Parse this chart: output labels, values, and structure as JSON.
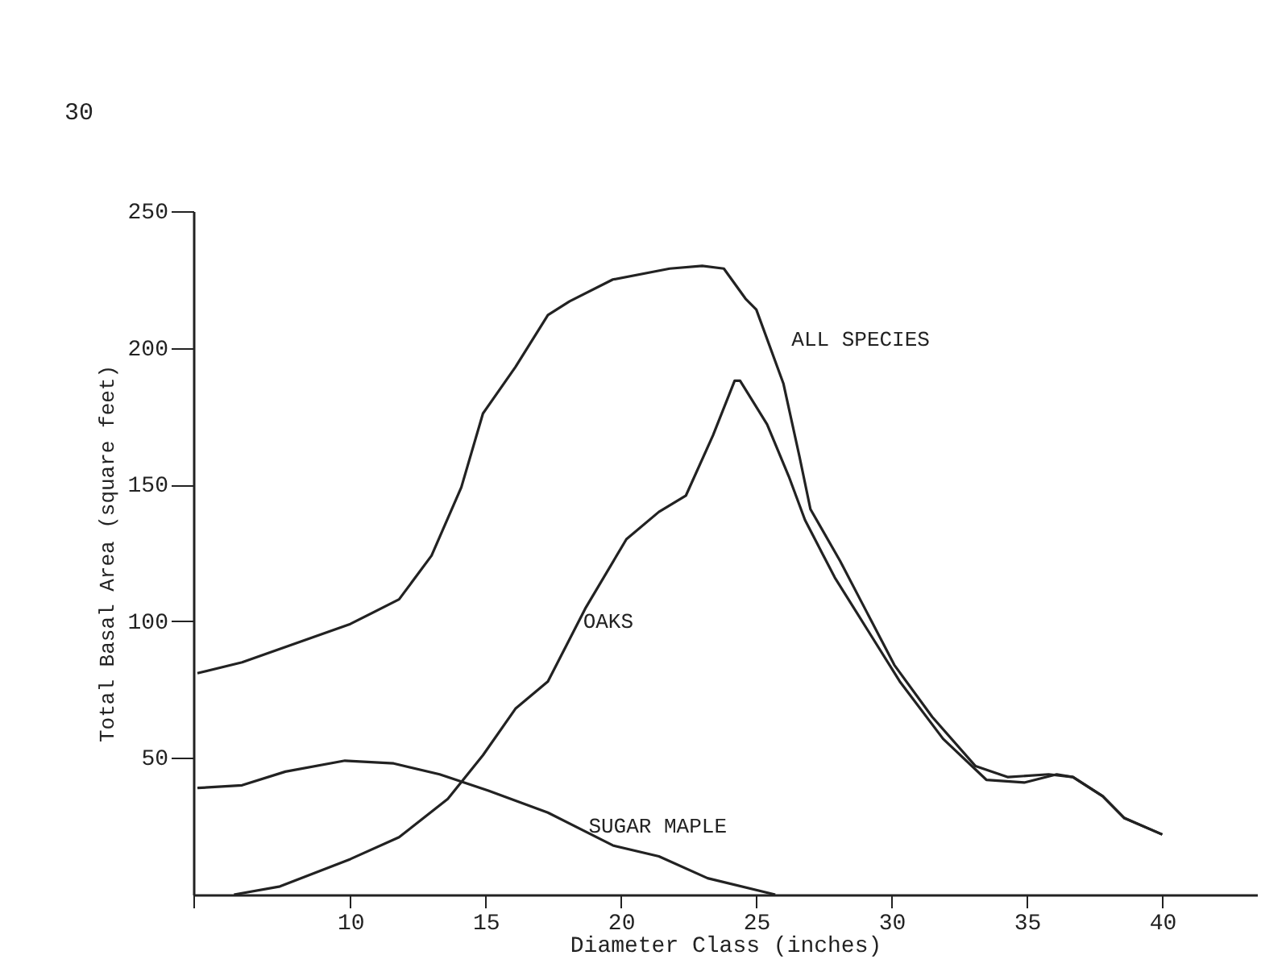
{
  "chart_data": {
    "type": "line",
    "xlabel": "Diameter Class (inches)",
    "ylabel": "Total Basal Area (square feet)",
    "annotations": [
      "30"
    ],
    "xlim": [
      4.2,
      43.5
    ],
    "xticks": [
      {
        "value": 4.2,
        "label": null
      },
      10,
      15,
      20,
      25,
      30,
      35,
      40
    ],
    "ylim": [
      0,
      250
    ],
    "yticks": [
      50,
      100,
      150,
      200,
      250
    ],
    "grid": false,
    "marker": "none",
    "line_style": "solid",
    "series": [
      {
        "name": "ALL SPECIES",
        "color": "#222222",
        "x": [
          4.35,
          6.0,
          8.0,
          10.0,
          11.8,
          13.0,
          14.1,
          14.9,
          16.1,
          17.3,
          18.1,
          19.7,
          21.8,
          23.0,
          23.8,
          24.6,
          25.0,
          26.0,
          26.6,
          27.0,
          28.1,
          29.1,
          30.1,
          31.5,
          33.1,
          34.3,
          35.8,
          36.7,
          37.8,
          38.6,
          40.0
        ],
        "values": [
          81,
          85,
          92,
          99,
          108,
          124,
          149,
          176,
          193,
          212,
          217,
          225,
          229,
          230,
          229,
          218,
          214,
          187,
          160,
          141,
          122,
          103,
          84,
          65,
          47,
          43,
          44,
          43,
          36,
          28,
          22
        ]
      },
      {
        "name": "OAKS",
        "color": "#222222",
        "x": [
          5.7,
          7.4,
          10.0,
          11.8,
          13.6,
          14.9,
          16.1,
          17.3,
          18.7,
          20.2,
          21.4,
          22.4,
          23.4,
          24.2,
          24.4,
          25.4,
          26.2,
          26.8,
          27.9,
          29.1,
          30.3,
          31.9,
          33.5,
          34.9,
          36.1,
          36.7,
          37.8,
          38.6,
          40.0
        ],
        "values": [
          0,
          3,
          13,
          21,
          35,
          51,
          68,
          78,
          105,
          130,
          140,
          146,
          168,
          188,
          188,
          172,
          153,
          137,
          116,
          97,
          78,
          57,
          42,
          41,
          44,
          43,
          36,
          28,
          22
        ]
      },
      {
        "name": "SUGAR MAPLE",
        "color": "#222222",
        "x": [
          4.35,
          6.0,
          7.6,
          9.8,
          11.6,
          13.3,
          15.1,
          17.3,
          19.7,
          21.4,
          23.2,
          25.7
        ],
        "values": [
          39,
          40,
          45,
          49,
          48,
          44,
          38,
          30,
          18,
          14,
          6,
          0
        ]
      }
    ]
  }
}
